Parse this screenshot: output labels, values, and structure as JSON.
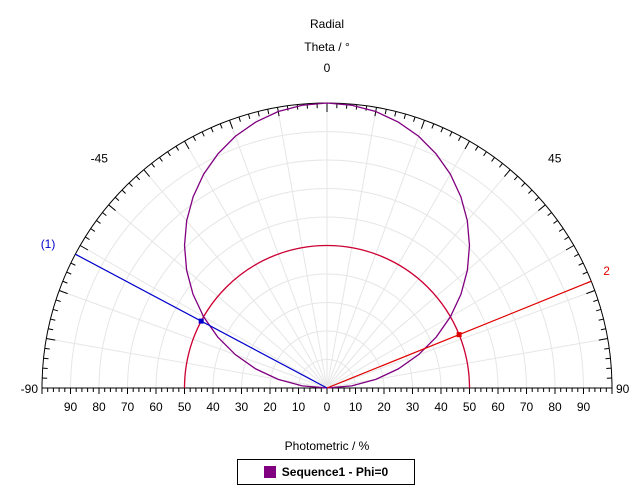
{
  "chart_data": {
    "type": "polar-line",
    "title": "Radial",
    "angle_axis_label": "Theta / °",
    "angle_ticks": [
      "-90",
      "-45",
      "0",
      "45",
      "90"
    ],
    "radial_axis_label": "Photometric / %",
    "radial_ticks": [
      "90",
      "80",
      "70",
      "60",
      "50",
      "40",
      "30",
      "20",
      "10",
      "0",
      "10",
      "20",
      "30",
      "40",
      "50",
      "60",
      "70",
      "80",
      "90"
    ],
    "radial_max": 100,
    "theta_range": [
      -90,
      90
    ],
    "series": [
      {
        "name": "Sequence1 - Phi=0",
        "color": "#800080",
        "theta": [
          -90,
          -85,
          -80,
          -75,
          -70,
          -65,
          -60,
          -55,
          -50,
          -45,
          -40,
          -35,
          -30,
          -25,
          -20,
          -15,
          -10,
          -5,
          0,
          5,
          10,
          15,
          20,
          25,
          30,
          35,
          40,
          45,
          50,
          55,
          60,
          65,
          70,
          75,
          80,
          85,
          90
        ],
        "r": [
          0,
          8.7,
          17.4,
          25.9,
          34.2,
          42.3,
          50,
          57.4,
          64.3,
          70.7,
          76.6,
          81.9,
          86.6,
          90.6,
          94,
          96.6,
          98.5,
          99.6,
          100,
          99.6,
          98.5,
          96.6,
          94,
          90.6,
          86.6,
          81.9,
          76.6,
          70.7,
          64.3,
          57.4,
          50,
          42.3,
          34.2,
          25.9,
          17.4,
          8.7,
          0
        ]
      }
    ],
    "reference_circle": {
      "radius": 50,
      "color": "#cc0033"
    },
    "cursors": [
      {
        "label": "(1)",
        "theta": -62,
        "color": "#0000cc"
      },
      {
        "label": "2",
        "theta": 68,
        "color": "#e00000"
      }
    ],
    "grid": true,
    "legend_position": "bottom"
  }
}
